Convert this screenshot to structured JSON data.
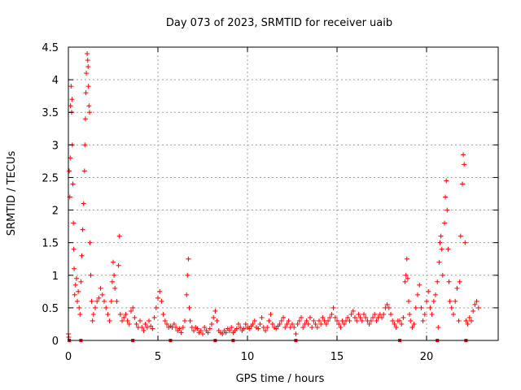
{
  "chart_data": {
    "type": "scatter",
    "title": "Day 073 of 2023, SRMTID for receiver uaib",
    "xlabel": "GPS time / hours",
    "ylabel": "SRMTID / TECUs",
    "xlim": [
      0,
      24
    ],
    "ylim": [
      0,
      4.5
    ],
    "grid": true,
    "x_ticks": [
      0,
      5,
      10,
      15,
      20
    ],
    "x_tick_labels": [
      "0",
      "5",
      "10",
      "15",
      "20"
    ],
    "y_ticks": [
      0,
      0.5,
      1,
      1.5,
      2,
      2.5,
      3,
      3.5,
      4,
      4.5
    ],
    "y_tick_labels": [
      "0",
      "0.5",
      "1",
      "1.5",
      "2",
      "2.5",
      "3",
      "3.5",
      "4",
      "4.5"
    ],
    "marker_color": "#ff0000",
    "baseline_markers_x": [
      0.05,
      0.7,
      3.6,
      5.7,
      8.2,
      9.2,
      12.7,
      18.5,
      20.6,
      22.2
    ],
    "series": [
      {
        "name": "SRMTID",
        "points": [
          [
            0.0,
            0.1
          ],
          [
            0.02,
            0.05
          ],
          [
            0.05,
            2.6
          ],
          [
            0.08,
            2.2
          ],
          [
            0.1,
            2.8
          ],
          [
            0.12,
            3.6
          ],
          [
            0.15,
            3.9
          ],
          [
            0.18,
            3.5
          ],
          [
            0.2,
            3.7
          ],
          [
            0.22,
            3.0
          ],
          [
            0.25,
            2.4
          ],
          [
            0.28,
            1.8
          ],
          [
            0.3,
            1.4
          ],
          [
            0.32,
            1.1
          ],
          [
            0.35,
            0.7
          ],
          [
            0.4,
            0.85
          ],
          [
            0.45,
            0.95
          ],
          [
            0.5,
            0.6
          ],
          [
            0.55,
            0.75
          ],
          [
            0.6,
            0.5
          ],
          [
            0.65,
            0.4
          ],
          [
            0.7,
            0.9
          ],
          [
            0.75,
            1.3
          ],
          [
            0.8,
            1.7
          ],
          [
            0.85,
            2.1
          ],
          [
            0.9,
            2.6
          ],
          [
            0.92,
            3.0
          ],
          [
            0.95,
            3.4
          ],
          [
            0.98,
            3.8
          ],
          [
            1.0,
            4.1
          ],
          [
            1.05,
            4.4
          ],
          [
            1.08,
            4.3
          ],
          [
            1.1,
            4.2
          ],
          [
            1.12,
            3.9
          ],
          [
            1.15,
            3.6
          ],
          [
            1.18,
            3.5
          ],
          [
            1.2,
            1.5
          ],
          [
            1.25,
            1.0
          ],
          [
            1.3,
            0.6
          ],
          [
            1.35,
            0.3
          ],
          [
            1.4,
            0.4
          ],
          [
            1.5,
            0.5
          ],
          [
            1.6,
            0.6
          ],
          [
            1.7,
            0.65
          ],
          [
            1.8,
            0.8
          ],
          [
            1.9,
            0.7
          ],
          [
            2.0,
            0.6
          ],
          [
            2.1,
            0.5
          ],
          [
            2.2,
            0.4
          ],
          [
            2.3,
            0.3
          ],
          [
            2.4,
            0.6
          ],
          [
            2.45,
            0.9
          ],
          [
            2.5,
            1.2
          ],
          [
            2.55,
            1.0
          ],
          [
            2.6,
            0.8
          ],
          [
            2.7,
            0.6
          ],
          [
            2.8,
            1.15
          ],
          [
            2.85,
            1.6
          ],
          [
            2.9,
            0.4
          ],
          [
            3.0,
            0.3
          ],
          [
            3.1,
            0.35
          ],
          [
            3.2,
            0.4
          ],
          [
            3.3,
            0.3
          ],
          [
            3.4,
            0.25
          ],
          [
            3.5,
            0.45
          ],
          [
            3.6,
            0.5
          ],
          [
            3.7,
            0.35
          ],
          [
            3.8,
            0.25
          ],
          [
            3.9,
            0.2
          ],
          [
            4.0,
            0.3
          ],
          [
            4.1,
            0.2
          ],
          [
            4.2,
            0.15
          ],
          [
            4.3,
            0.25
          ],
          [
            4.4,
            0.2
          ],
          [
            4.5,
            0.3
          ],
          [
            4.6,
            0.22
          ],
          [
            4.7,
            0.18
          ],
          [
            4.8,
            0.35
          ],
          [
            4.9,
            0.5
          ],
          [
            5.0,
            0.65
          ],
          [
            5.1,
            0.75
          ],
          [
            5.2,
            0.6
          ],
          [
            5.3,
            0.4
          ],
          [
            5.4,
            0.3
          ],
          [
            5.5,
            0.25
          ],
          [
            5.6,
            0.2
          ],
          [
            5.7,
            0.22
          ],
          [
            5.8,
            0.2
          ],
          [
            5.9,
            0.25
          ],
          [
            6.0,
            0.2
          ],
          [
            6.1,
            0.15
          ],
          [
            6.2,
            0.18
          ],
          [
            6.3,
            0.12
          ],
          [
            6.4,
            0.2
          ],
          [
            6.5,
            0.3
          ],
          [
            6.6,
            0.7
          ],
          [
            6.65,
            1.0
          ],
          [
            6.7,
            1.25
          ],
          [
            6.75,
            0.5
          ],
          [
            6.8,
            0.3
          ],
          [
            6.9,
            0.2
          ],
          [
            7.0,
            0.15
          ],
          [
            7.1,
            0.2
          ],
          [
            7.2,
            0.18
          ],
          [
            7.3,
            0.12
          ],
          [
            7.4,
            0.15
          ],
          [
            7.5,
            0.1
          ],
          [
            7.6,
            0.2
          ],
          [
            7.7,
            0.15
          ],
          [
            7.8,
            0.12
          ],
          [
            7.9,
            0.18
          ],
          [
            8.0,
            0.25
          ],
          [
            8.1,
            0.35
          ],
          [
            8.2,
            0.45
          ],
          [
            8.3,
            0.3
          ],
          [
            8.4,
            0.15
          ],
          [
            8.5,
            0.12
          ],
          [
            8.6,
            0.1
          ],
          [
            8.7,
            0.15
          ],
          [
            8.8,
            0.12
          ],
          [
            8.9,
            0.18
          ],
          [
            9.0,
            0.15
          ],
          [
            9.1,
            0.2
          ],
          [
            9.2,
            0.12
          ],
          [
            9.3,
            0.15
          ],
          [
            9.4,
            0.18
          ],
          [
            9.5,
            0.25
          ],
          [
            9.6,
            0.2
          ],
          [
            9.7,
            0.15
          ],
          [
            9.8,
            0.18
          ],
          [
            9.9,
            0.25
          ],
          [
            10.0,
            0.2
          ],
          [
            10.1,
            0.18
          ],
          [
            10.2,
            0.22
          ],
          [
            10.3,
            0.25
          ],
          [
            10.4,
            0.3
          ],
          [
            10.5,
            0.2
          ],
          [
            10.6,
            0.18
          ],
          [
            10.7,
            0.25
          ],
          [
            10.8,
            0.35
          ],
          [
            10.9,
            0.2
          ],
          [
            11.0,
            0.15
          ],
          [
            11.1,
            0.2
          ],
          [
            11.2,
            0.3
          ],
          [
            11.3,
            0.4
          ],
          [
            11.4,
            0.25
          ],
          [
            11.5,
            0.2
          ],
          [
            11.6,
            0.18
          ],
          [
            11.7,
            0.22
          ],
          [
            11.8,
            0.25
          ],
          [
            11.9,
            0.3
          ],
          [
            12.0,
            0.35
          ],
          [
            12.1,
            0.2
          ],
          [
            12.2,
            0.25
          ],
          [
            12.3,
            0.3
          ],
          [
            12.4,
            0.2
          ],
          [
            12.5,
            0.25
          ],
          [
            12.6,
            0.2
          ],
          [
            12.7,
            0.1
          ],
          [
            12.8,
            0.25
          ],
          [
            12.9,
            0.3
          ],
          [
            13.0,
            0.35
          ],
          [
            13.1,
            0.2
          ],
          [
            13.2,
            0.25
          ],
          [
            13.3,
            0.3
          ],
          [
            13.4,
            0.25
          ],
          [
            13.5,
            0.35
          ],
          [
            13.6,
            0.2
          ],
          [
            13.7,
            0.3
          ],
          [
            13.8,
            0.25
          ],
          [
            13.9,
            0.2
          ],
          [
            14.0,
            0.3
          ],
          [
            14.1,
            0.25
          ],
          [
            14.2,
            0.35
          ],
          [
            14.3,
            0.3
          ],
          [
            14.4,
            0.25
          ],
          [
            14.5,
            0.3
          ],
          [
            14.6,
            0.35
          ],
          [
            14.7,
            0.4
          ],
          [
            14.8,
            0.5
          ],
          [
            14.9,
            0.35
          ],
          [
            15.0,
            0.3
          ],
          [
            15.1,
            0.25
          ],
          [
            15.2,
            0.2
          ],
          [
            15.3,
            0.3
          ],
          [
            15.4,
            0.25
          ],
          [
            15.5,
            0.3
          ],
          [
            15.6,
            0.35
          ],
          [
            15.7,
            0.3
          ],
          [
            15.8,
            0.4
          ],
          [
            15.9,
            0.45
          ],
          [
            16.0,
            0.35
          ],
          [
            16.1,
            0.3
          ],
          [
            16.2,
            0.4
          ],
          [
            16.3,
            0.35
          ],
          [
            16.4,
            0.3
          ],
          [
            16.5,
            0.4
          ],
          [
            16.6,
            0.35
          ],
          [
            16.7,
            0.3
          ],
          [
            16.8,
            0.25
          ],
          [
            16.9,
            0.3
          ],
          [
            17.0,
            0.35
          ],
          [
            17.1,
            0.4
          ],
          [
            17.2,
            0.3
          ],
          [
            17.3,
            0.35
          ],
          [
            17.4,
            0.4
          ],
          [
            17.5,
            0.35
          ],
          [
            17.6,
            0.4
          ],
          [
            17.7,
            0.5
          ],
          [
            17.8,
            0.55
          ],
          [
            17.9,
            0.5
          ],
          [
            18.0,
            0.4
          ],
          [
            18.1,
            0.3
          ],
          [
            18.2,
            0.25
          ],
          [
            18.3,
            0.2
          ],
          [
            18.4,
            0.3
          ],
          [
            18.5,
            0.3
          ],
          [
            18.6,
            0.25
          ],
          [
            18.7,
            0.35
          ],
          [
            18.8,
            0.9
          ],
          [
            18.85,
            1.0
          ],
          [
            18.9,
            1.25
          ],
          [
            18.95,
            0.95
          ],
          [
            19.0,
            0.6
          ],
          [
            19.05,
            0.4
          ],
          [
            19.1,
            0.3
          ],
          [
            19.2,
            0.2
          ],
          [
            19.3,
            0.25
          ],
          [
            19.4,
            0.5
          ],
          [
            19.5,
            0.7
          ],
          [
            19.6,
            0.85
          ],
          [
            19.7,
            0.5
          ],
          [
            19.8,
            0.3
          ],
          [
            19.9,
            0.4
          ],
          [
            20.0,
            0.6
          ],
          [
            20.1,
            0.75
          ],
          [
            20.2,
            0.5
          ],
          [
            20.3,
            0.4
          ],
          [
            20.4,
            0.6
          ],
          [
            20.5,
            0.7
          ],
          [
            20.6,
            0.9
          ],
          [
            20.65,
            0.2
          ],
          [
            20.7,
            1.2
          ],
          [
            20.75,
            1.5
          ],
          [
            20.8,
            1.6
          ],
          [
            20.85,
            1.4
          ],
          [
            20.9,
            1.0
          ],
          [
            21.0,
            1.8
          ],
          [
            21.05,
            2.2
          ],
          [
            21.1,
            2.45
          ],
          [
            21.15,
            2.0
          ],
          [
            21.2,
            1.4
          ],
          [
            21.25,
            0.9
          ],
          [
            21.3,
            0.6
          ],
          [
            21.4,
            0.5
          ],
          [
            21.5,
            0.4
          ],
          [
            21.6,
            0.6
          ],
          [
            21.7,
            0.8
          ],
          [
            21.8,
            0.3
          ],
          [
            21.85,
            0.9
          ],
          [
            21.9,
            1.6
          ],
          [
            22.0,
            2.4
          ],
          [
            22.05,
            2.85
          ],
          [
            22.1,
            2.7
          ],
          [
            22.15,
            1.5
          ],
          [
            22.2,
            0.3
          ],
          [
            22.3,
            0.25
          ],
          [
            22.4,
            0.35
          ],
          [
            22.5,
            0.3
          ],
          [
            22.6,
            0.45
          ],
          [
            22.7,
            0.55
          ],
          [
            22.8,
            0.6
          ],
          [
            22.9,
            0.5
          ]
        ]
      }
    ]
  }
}
